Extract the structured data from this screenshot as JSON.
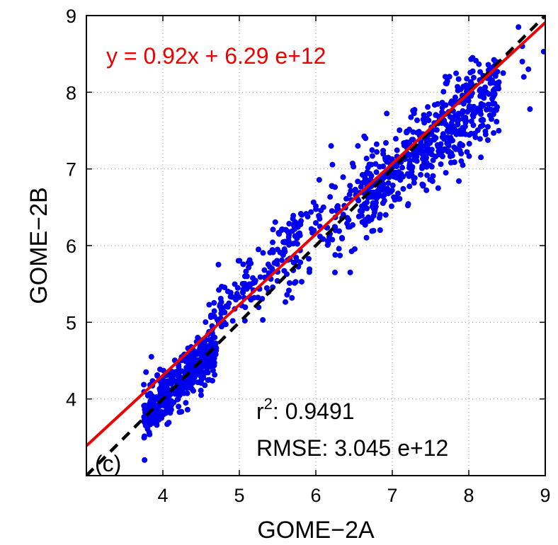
{
  "chart_data": {
    "type": "scatter",
    "xlabel": "GOME−2A",
    "ylabel": "GOME−2B",
    "xlim": [
      3,
      9
    ],
    "ylim": [
      3,
      9
    ],
    "xticks": [
      "4",
      "5",
      "6",
      "7",
      "8",
      "9"
    ],
    "yticks": [
      "4",
      "5",
      "6",
      "7",
      "8",
      "9"
    ],
    "grid": true,
    "panel_label": "(c)",
    "fit_equation": "y = 0.92x + 6.29 e+12",
    "r2_label": "r",
    "r2_exponent": "2",
    "r2_value": ": 0.9491",
    "rmse_text": "RMSE: 3.045 e+12",
    "fit_line": {
      "slope": 0.92,
      "intercept": 0.629,
      "color": "#ee0000"
    },
    "identity_line": {
      "slope": 1,
      "intercept": 0,
      "color": "#000000",
      "style": "dashed"
    },
    "marker_color": "#0000ee",
    "clusters": [
      {
        "x": [
          3.75,
          4.7
        ],
        "slope": 1.0,
        "offset": 0.0,
        "spread": 0.16,
        "n": 430
      },
      {
        "x": [
          4.6,
          5.8
        ],
        "slope": 1.0,
        "offset": 0.35,
        "spread": 0.22,
        "n": 140
      },
      {
        "x": [
          5.6,
          6.8
        ],
        "slope": 0.95,
        "offset": 0.45,
        "spread": 0.28,
        "n": 130
      },
      {
        "x": [
          6.6,
          8.4
        ],
        "slope": 0.85,
        "offset": 0.95,
        "spread": 0.28,
        "n": 520
      }
    ],
    "points": [
      [
        3.78,
        4.35
      ],
      [
        3.85,
        4.55
      ],
      [
        4.05,
        4.02
      ],
      [
        4.2,
        4.0
      ],
      [
        4.3,
        3.95
      ],
      [
        4.5,
        4.05
      ],
      [
        4.8,
        5.0
      ],
      [
        4.85,
        5.2
      ],
      [
        5.1,
        5.6
      ],
      [
        5.25,
        5.95
      ],
      [
        5.55,
        6.2
      ],
      [
        5.7,
        6.35
      ],
      [
        6.05,
        6.35
      ],
      [
        6.1,
        6.5
      ],
      [
        6.25,
        5.65
      ],
      [
        6.45,
        5.65
      ],
      [
        6.55,
        7.3
      ],
      [
        6.65,
        7.4
      ],
      [
        6.2,
        7.3
      ],
      [
        7.45,
        7.35
      ],
      [
        7.6,
        6.75
      ],
      [
        7.7,
        6.95
      ],
      [
        7.9,
        7.2
      ],
      [
        8.25,
        7.55
      ],
      [
        8.35,
        8.4
      ],
      [
        8.45,
        8.25
      ],
      [
        8.52,
        8.5
      ],
      [
        8.65,
        8.85
      ],
      [
        8.7,
        8.4
      ],
      [
        8.72,
        8.2
      ],
      [
        8.78,
        8.3
      ],
      [
        8.8,
        7.78
      ],
      [
        8.98,
        8.53
      ],
      [
        8.7,
        8.6
      ],
      [
        8.05,
        8.45
      ],
      [
        8.15,
        7.95
      ]
    ]
  }
}
